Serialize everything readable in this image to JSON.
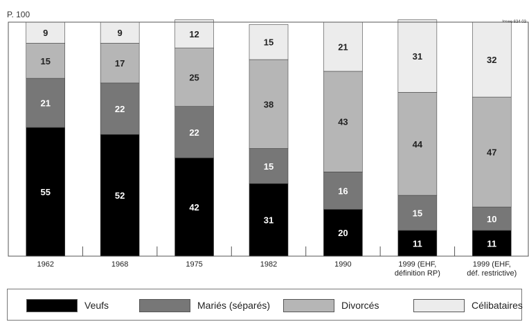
{
  "ylabel": "P. 100",
  "corner_note": "Insee 634 03",
  "colors": {
    "Veufs": "#000000",
    "Mariés (séparés)": "#777777",
    "Divorcés": "#b6b6b6",
    "Célibataires": "#ececec"
  },
  "chart_data": {
    "type": "bar",
    "stacked": true,
    "ylabel": "P. 100",
    "ylim": [
      0,
      100
    ],
    "categories": [
      "1962",
      "1968",
      "1975",
      "1982",
      "1990",
      "1999 (EHF, définition RP)",
      "1999 (EHF, déf. restrictive)"
    ],
    "category_lines": [
      [
        "1962"
      ],
      [
        "1968"
      ],
      [
        "1975"
      ],
      [
        "1982"
      ],
      [
        "1990"
      ],
      [
        "1999 (EHF,",
        "définition RP)"
      ],
      [
        "1999 (EHF,",
        "déf. restrictive)"
      ]
    ],
    "series": [
      {
        "name": "Veufs",
        "values": [
          55,
          52,
          42,
          31,
          20,
          11,
          11
        ]
      },
      {
        "name": "Mariés (séparés)",
        "values": [
          21,
          22,
          22,
          15,
          16,
          15,
          10
        ]
      },
      {
        "name": "Divorcés",
        "values": [
          15,
          17,
          25,
          38,
          43,
          44,
          47
        ]
      },
      {
        "name": "Célibataires",
        "values": [
          9,
          9,
          12,
          15,
          21,
          31,
          32
        ]
      }
    ],
    "legend_position": "bottom",
    "grid": false
  },
  "legend": {
    "items": [
      {
        "label": "Veufs"
      },
      {
        "label": "Mariés (séparés)"
      },
      {
        "label": "Divorcés"
      },
      {
        "label": "Célibataires"
      }
    ]
  }
}
